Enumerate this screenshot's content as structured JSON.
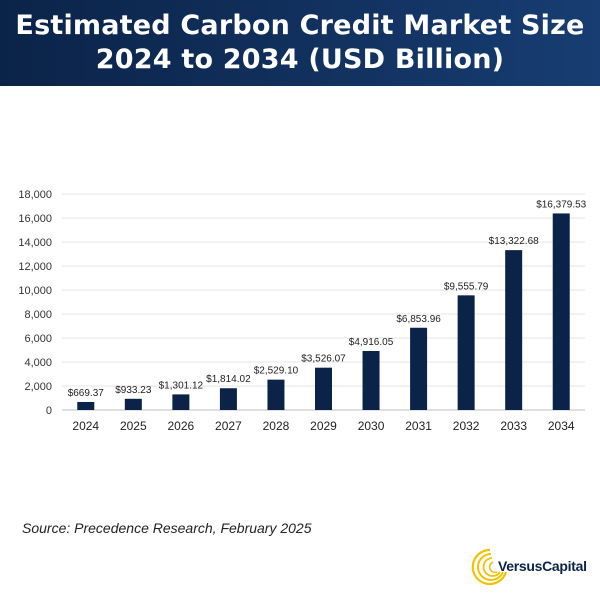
{
  "header": {
    "title_line1": "Estimated Carbon Credit Market Size",
    "title_line2": "2024 to 2034 (USD Billion)"
  },
  "source": "Source: Precedence Research, February 2025",
  "logo": {
    "text": "VersusCapital",
    "icon": "swirl-logo-icon"
  },
  "colors": {
    "header": "#0b2348",
    "bar": "#0b2348",
    "logo_accent": "#f2c200"
  },
  "chart_data": {
    "type": "bar",
    "title": "Estimated Carbon Credit Market Size 2024 to 2034 (USD Billion)",
    "categories": [
      "2024",
      "2025",
      "2026",
      "2027",
      "2028",
      "2029",
      "2030",
      "2031",
      "2032",
      "2033",
      "2034"
    ],
    "values": [
      669.37,
      933.23,
      1301.12,
      1814.02,
      2529.1,
      3526.07,
      4916.05,
      6853.96,
      9555.79,
      13322.68,
      16379.53
    ],
    "data_labels": [
      "$669.37",
      "$933.23",
      "$1,301.12",
      "$1,814.02",
      "$2,529.10",
      "$3,526.07",
      "$4,916.05",
      "$6,853.96",
      "$9,555.79",
      "$13,322.68",
      "$16,379.53"
    ],
    "y_ticks": [
      "0",
      "2,000",
      "4,000",
      "6,000",
      "8,000",
      "10,000",
      "12,000",
      "14,000",
      "16,000",
      "18,000"
    ],
    "ylim": [
      0,
      18000
    ],
    "xlabel": "",
    "ylabel": "",
    "grid": true
  }
}
